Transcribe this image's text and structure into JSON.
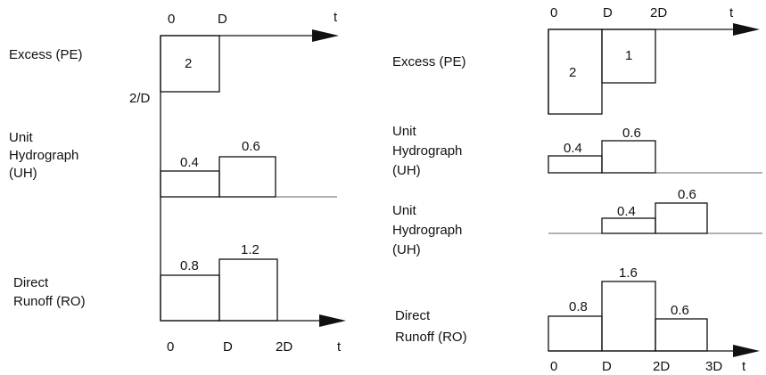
{
  "left": {
    "top_axis": [
      "0",
      "D",
      "t"
    ],
    "excess": {
      "label": "Excess (PE)",
      "blocks": [
        "2"
      ],
      "height_label": "2/D"
    },
    "uh": {
      "label": [
        "Unit",
        "Hydrograph",
        "(UH)"
      ],
      "blocks": [
        "0.4",
        "0.6"
      ]
    },
    "runoff": {
      "label": [
        "Direct",
        "Runoff (RO)"
      ],
      "blocks": [
        "0.8",
        "1.2"
      ]
    },
    "bottom_axis": [
      "0",
      "D",
      "2D",
      "t"
    ]
  },
  "right": {
    "top_axis": [
      "0",
      "D",
      "2D",
      "t"
    ],
    "excess": {
      "label": "Excess (PE)",
      "blocks": [
        "2",
        "1"
      ]
    },
    "uh1": {
      "label": [
        "Unit",
        "Hydrograph",
        "(UH)"
      ],
      "blocks": [
        "0.4",
        "0.6"
      ]
    },
    "uh2": {
      "label": [
        "Unit",
        "Hydrograph",
        "(UH)"
      ],
      "blocks": [
        "0.4",
        "0.6"
      ]
    },
    "runoff": {
      "label": [
        "Direct",
        "Runoff (RO)"
      ],
      "blocks": [
        "0.8",
        "1.6",
        "0.6"
      ]
    },
    "bottom_axis": [
      "0",
      "D",
      "2D",
      "3D",
      "t"
    ]
  }
}
